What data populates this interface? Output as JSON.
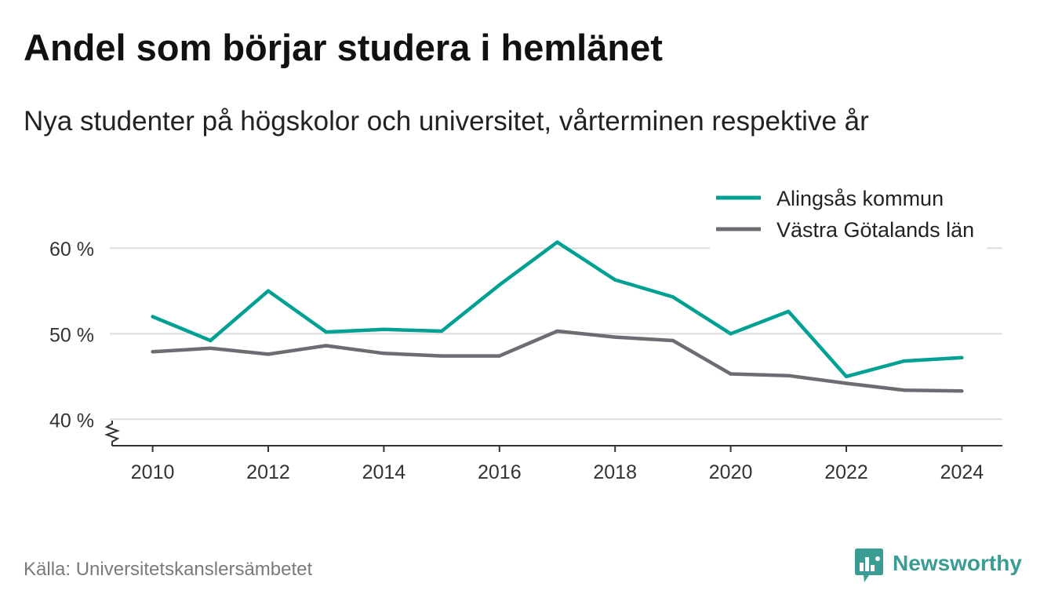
{
  "chart_data": {
    "type": "line",
    "title": "Andel som börjar studera i hemlänet",
    "subtitle": "Nya studenter på högskolor och universitet, vårterminen respektive år",
    "x": [
      2010,
      2011,
      2012,
      2013,
      2014,
      2015,
      2016,
      2017,
      2018,
      2019,
      2020,
      2021,
      2022,
      2023,
      2024
    ],
    "series": [
      {
        "name": "Alingsås kommun",
        "color": "#00a094",
        "values": [
          52.0,
          49.2,
          55.0,
          50.2,
          50.5,
          50.3,
          55.7,
          60.7,
          56.3,
          54.3,
          50.0,
          52.6,
          45.0,
          46.8,
          47.2
        ]
      },
      {
        "name": "Västra Götalands län",
        "color": "#6e6c73",
        "values": [
          47.9,
          48.3,
          47.6,
          48.6,
          47.7,
          47.4,
          47.4,
          50.3,
          49.6,
          49.2,
          45.3,
          45.1,
          44.2,
          43.4,
          43.3
        ]
      }
    ],
    "xlim": [
      2009.3,
      2024.7
    ],
    "ylim": [
      37,
      68
    ],
    "xticks": [
      2010,
      2012,
      2014,
      2016,
      2018,
      2020,
      2022,
      2024
    ],
    "xtick_labels": [
      "2010",
      "2012",
      "2014",
      "2016",
      "2018",
      "2020",
      "2022",
      "2024"
    ],
    "yticks": [
      40,
      50,
      60
    ],
    "ytick_labels": [
      "40 %",
      "50 %",
      "60 %"
    ],
    "y_axis_break": true,
    "grid": {
      "horizontal": true,
      "vertical": false
    },
    "legend": {
      "placement": "top-right"
    }
  },
  "footer": {
    "source": "Källa: Universitetskanslersämbetet",
    "logo_text": "Newsworthy",
    "logo_icon": "newsworthy-chart-bubble-icon",
    "brand_color": "#3b9c94"
  }
}
